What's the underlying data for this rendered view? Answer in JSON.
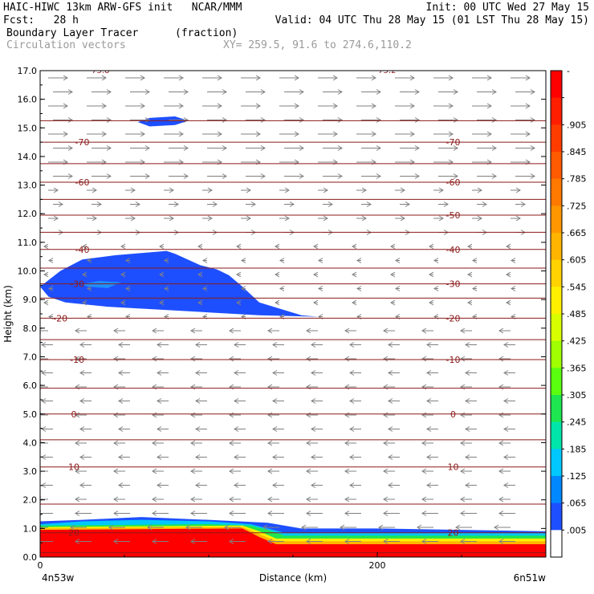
{
  "header": {
    "line1_left": "HAIC-HIWC 13km ARW-GFS init   NCAR/MMM",
    "line1_right": "Init: 00 UTC Wed 27 May 15",
    "line2_left": "Fcst:   28 h",
    "line2_right": "Valid: 04 UTC Thu 28 May 15 (01 LST Thu 28 May 15)",
    "line3_field": "Boundary Layer Tracer",
    "line3_units": "(fraction)",
    "line4_field": "Circulation vectors",
    "line4_xy": "XY= 259.5, 91.6 to 274.6,110.2"
  },
  "colors": {
    "contour": "#8b1a1a",
    "vector": "#808080",
    "tracer_blue": "#1e4fff"
  },
  "chart_data": {
    "type": "heatmap",
    "xlabel": "Distance (km)",
    "ylabel": "Height (km)",
    "xlim": [
      0,
      300
    ],
    "ylim": [
      0,
      17
    ],
    "x_ticks": [
      {
        "value": 0,
        "label": "0"
      },
      {
        "value": 200,
        "label": "200"
      }
    ],
    "x_endpoint_labels": {
      "left": "4n53w",
      "right": "6n51w"
    },
    "y_ticks": [
      {
        "value": 0,
        "label": "0.0"
      },
      {
        "value": 1,
        "label": "1.0"
      },
      {
        "value": 2,
        "label": "2.0"
      },
      {
        "value": 3,
        "label": "3.0"
      },
      {
        "value": 4,
        "label": "4.0"
      },
      {
        "value": 5,
        "label": "5.0"
      },
      {
        "value": 6,
        "label": "6.0"
      },
      {
        "value": 7,
        "label": "7.0"
      },
      {
        "value": 8,
        "label": "8.0"
      },
      {
        "value": 9,
        "label": "9.0"
      },
      {
        "value": 10,
        "label": "10.0"
      },
      {
        "value": 11,
        "label": "11.0"
      },
      {
        "value": 12,
        "label": "12.0"
      },
      {
        "value": 13,
        "label": "13.0"
      },
      {
        "value": 14,
        "label": "14.0"
      },
      {
        "value": 15,
        "label": "15.0"
      },
      {
        "value": 16,
        "label": "16.0"
      },
      {
        "value": 17,
        "label": "17.0"
      }
    ],
    "colorbar": {
      "labels": [
        "-",
        ".905",
        ".845",
        ".785",
        ".725",
        ".665",
        ".605",
        ".545",
        ".485",
        ".425",
        ".365",
        ".305",
        ".245",
        ".185",
        ".125",
        ".065",
        ".005"
      ],
      "colors": [
        "#ff0000",
        "#ff1e00",
        "#ff3c00",
        "#ff5a00",
        "#ff7800",
        "#ff9600",
        "#ffb400",
        "#ffd200",
        "#fff000",
        "#d8ff00",
        "#a0ff00",
        "#5aff10",
        "#1ee650",
        "#00e6aa",
        "#00c8ff",
        "#0088ff",
        "#1e4fff",
        "#ffffff"
      ]
    },
    "temperature_contours": [
      {
        "height": 0.15,
        "label": ""
      },
      {
        "height": 0.85,
        "label": "20",
        "label_at": [
          20,
          245
        ]
      },
      {
        "height": 1.85,
        "label": ""
      },
      {
        "height": 3.15,
        "label": "10",
        "label_at": [
          20,
          245
        ]
      },
      {
        "height": 4.1,
        "label": ""
      },
      {
        "height": 5.0,
        "label": "0",
        "label_at": [
          20,
          245
        ]
      },
      {
        "height": 5.9,
        "label": ""
      },
      {
        "height": 6.9,
        "label": "-10",
        "label_at": [
          22,
          245
        ]
      },
      {
        "height": 7.6,
        "label": ""
      },
      {
        "height": 8.35,
        "label": "-20",
        "label_at": [
          12,
          245
        ]
      },
      {
        "height": 9.05,
        "label": ""
      },
      {
        "height": 9.55,
        "label": "-30",
        "label_at": [
          22,
          245
        ]
      },
      {
        "height": 10.1,
        "label": ""
      },
      {
        "height": 10.75,
        "label": "-40",
        "label_at": [
          25,
          245
        ]
      },
      {
        "height": 11.35,
        "label": ""
      },
      {
        "height": 11.95,
        "label": "-50",
        "label_at": [
          245
        ]
      },
      {
        "height": 12.5,
        "label": ""
      },
      {
        "height": 13.1,
        "label": "-60",
        "label_at": [
          25,
          245
        ]
      },
      {
        "height": 13.75,
        "label": ""
      },
      {
        "height": 14.5,
        "label": "-70",
        "label_at": [
          25,
          245
        ]
      },
      {
        "height": 15.25,
        "label": ""
      }
    ],
    "top_labels": [
      {
        "x": 35,
        "text": "-75.8"
      },
      {
        "x": 205,
        "text": "-75.2"
      }
    ],
    "tracer_regions": [
      {
        "name": "boundary-layer",
        "values_note": "",
        "bands": [
          {
            "top": [
              [
                0,
                1.25
              ],
              [
                25,
                1.3
              ],
              [
                60,
                1.4
              ],
              [
                100,
                1.3
              ],
              [
                135,
                1.2
              ],
              [
                155,
                1.0
              ],
              [
                200,
                1.0
              ],
              [
                250,
                0.95
              ],
              [
                300,
                0.9
              ]
            ],
            "color": "#1e4fff"
          },
          {
            "top": [
              [
                0,
                1.15
              ],
              [
                25,
                1.25
              ],
              [
                60,
                1.3
              ],
              [
                100,
                1.25
              ],
              [
                125,
                1.15
              ],
              [
                135,
                1.0
              ],
              [
                145,
                0.85
              ],
              [
                200,
                0.85
              ],
              [
                300,
                0.85
              ]
            ],
            "color": "#00c8ff"
          },
          {
            "top": [
              [
                0,
                1.1
              ],
              [
                100,
                1.15
              ],
              [
                125,
                1.1
              ],
              [
                135,
                0.95
              ],
              [
                145,
                0.75
              ],
              [
                300,
                0.75
              ]
            ],
            "color": "#1ee650"
          },
          {
            "top": [
              [
                0,
                1.05
              ],
              [
                120,
                1.1
              ],
              [
                130,
                0.9
              ],
              [
                140,
                0.65
              ],
              [
                300,
                0.65
              ]
            ],
            "color": "#fff000"
          },
          {
            "top": [
              [
                0,
                1.0
              ],
              [
                120,
                1.05
              ],
              [
                130,
                0.8
              ],
              [
                140,
                0.55
              ],
              [
                300,
                0.55
              ]
            ],
            "color": "#ffb400"
          },
          {
            "top": [
              [
                0,
                0.95
              ],
              [
                120,
                1.0
              ],
              [
                130,
                0.7
              ],
              [
                140,
                0.45
              ],
              [
                300,
                0.45
              ]
            ],
            "color": "#ff0000"
          }
        ]
      },
      {
        "name": "upper-blob",
        "color": "#1e4fff",
        "outline": [
          [
            0,
            9.45
          ],
          [
            12,
            10.0
          ],
          [
            25,
            10.4
          ],
          [
            45,
            10.55
          ],
          [
            75,
            10.7
          ],
          [
            80,
            10.6
          ],
          [
            95,
            10.2
          ],
          [
            105,
            10.05
          ],
          [
            112,
            9.85
          ],
          [
            120,
            9.45
          ],
          [
            130,
            8.9
          ],
          [
            155,
            8.45
          ],
          [
            165,
            8.4
          ],
          [
            130,
            8.45
          ],
          [
            100,
            8.55
          ],
          [
            70,
            8.65
          ],
          [
            40,
            8.75
          ],
          [
            15,
            8.9
          ],
          [
            5,
            9.1
          ]
        ]
      },
      {
        "name": "upper-blob-core",
        "color": "#1e90ff",
        "outline": [
          [
            25,
            9.55
          ],
          [
            35,
            9.65
          ],
          [
            48,
            9.6
          ],
          [
            40,
            9.4
          ],
          [
            28,
            9.45
          ]
        ]
      },
      {
        "name": "top-blob",
        "color": "#1e4fff",
        "outline": [
          [
            58,
            15.2
          ],
          [
            65,
            15.35
          ],
          [
            80,
            15.4
          ],
          [
            88,
            15.25
          ],
          [
            80,
            15.1
          ],
          [
            65,
            15.05
          ]
        ]
      }
    ]
  }
}
